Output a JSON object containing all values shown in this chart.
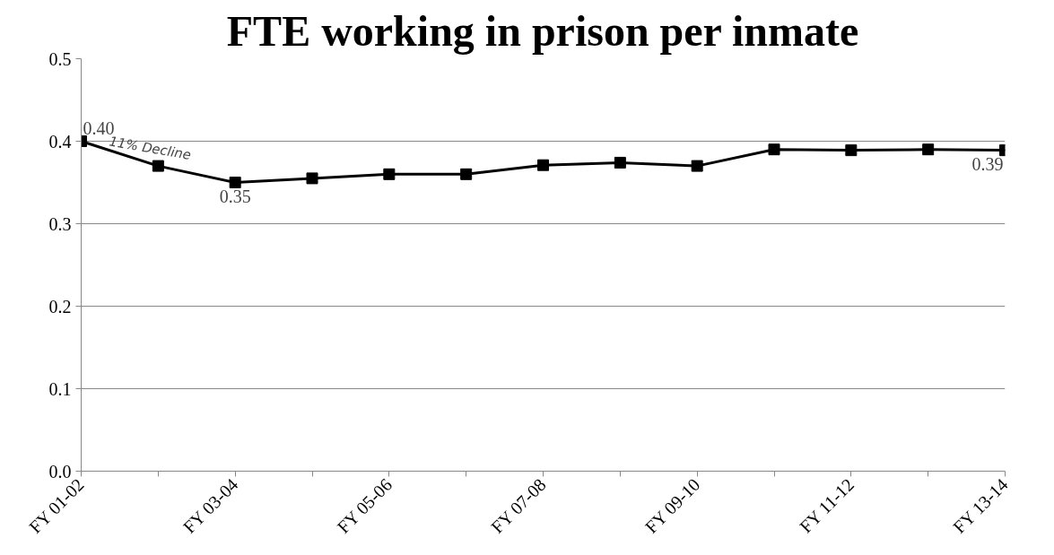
{
  "chart_data": {
    "type": "line",
    "title": "FTE working in prison per inmate",
    "categories": [
      "FY 01-02",
      null,
      "FY 03-04",
      null,
      "FY 05-06",
      null,
      "FY 07-08",
      null,
      "FY 09-10",
      null,
      "FY 11-12",
      null,
      "FY 13-14"
    ],
    "series": [
      {
        "color": "#000000",
        "values": [
          0.4,
          0.37,
          0.35,
          0.355,
          0.36,
          0.36,
          0.371,
          0.374,
          0.37,
          0.39,
          0.389,
          0.39,
          0.389
        ],
        "value_labels": [
          "0.40",
          null,
          "0.35",
          null,
          null,
          null,
          null,
          null,
          null,
          null,
          null,
          null,
          "0.39"
        ]
      }
    ],
    "ylim": [
      0,
      0.5
    ],
    "yticks": [
      {
        "value": 0,
        "label": "0.0"
      },
      {
        "value": 0.1,
        "label": "0.1"
      },
      {
        "value": 0.2,
        "label": "0.2"
      },
      {
        "value": 0.3,
        "label": "0.3"
      },
      {
        "value": 0.4,
        "label": "0.4"
      },
      {
        "value": 0.5,
        "label": "0.5"
      }
    ],
    "grid": "y",
    "marker": "square",
    "line_style": "solid",
    "annotations": [
      "11% Decline"
    ]
  }
}
